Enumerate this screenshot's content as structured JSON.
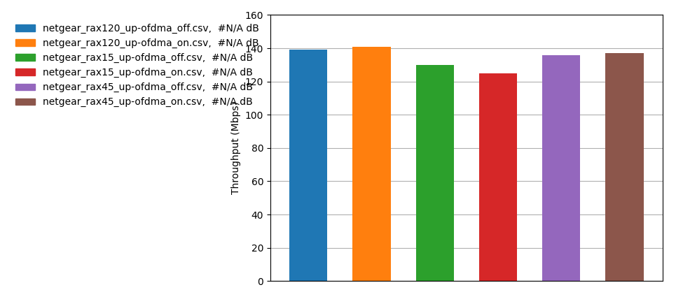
{
  "chart_data": {
    "type": "bar",
    "categories": [
      "netgear_rax120_up-ofdma_off.csv,  #N/A dB",
      "netgear_rax120_up-ofdma_on.csv,  #N/A dB",
      "netgear_rax15_up-ofdma_off.csv,  #N/A dB",
      "netgear_rax15_up-ofdma_on.csv,  #N/A dB",
      "netgear_rax45_up-ofdma_off.csv,  #N/A dB",
      "netgear_rax45_up-ofdma_on.csv,  #N/A dB"
    ],
    "values": [
      139,
      141,
      130,
      125,
      136,
      137
    ],
    "ylabel": "Throughput (Mbps)",
    "ylim": [
      0,
      160
    ],
    "yticks": [
      0,
      20,
      40,
      60,
      80,
      100,
      120,
      140,
      160
    ],
    "grid": true,
    "legend": "upper left",
    "tick_labels": "y"
  }
}
